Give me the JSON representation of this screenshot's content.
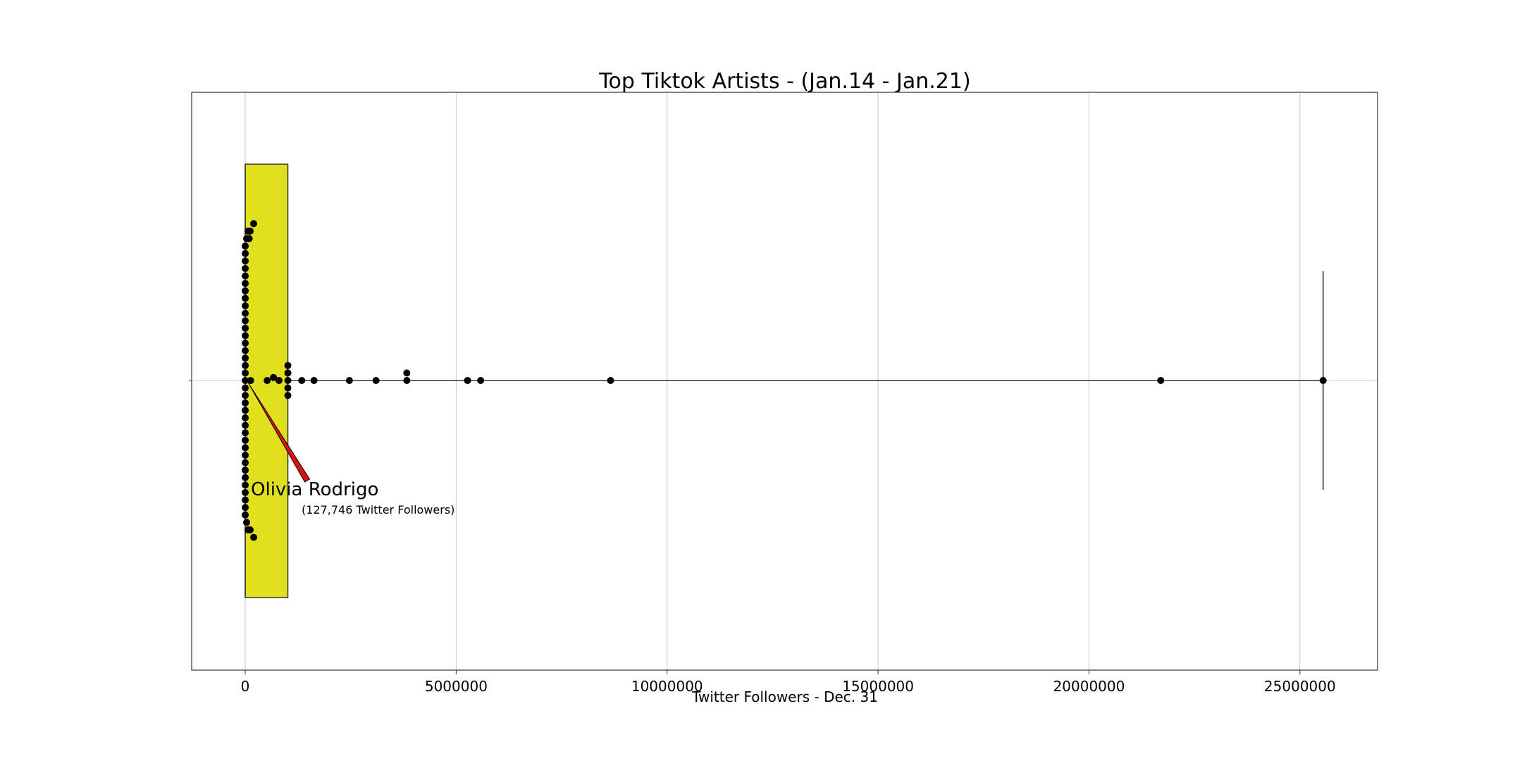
{
  "chart_data": {
    "type": "box",
    "title": "Top Tiktok Artists - (Jan.14 - Jan.21)",
    "xlabel": "Twitter Followers - Dec. 31",
    "ylabel": "",
    "xlim": [
      -1270000,
      26840000
    ],
    "xticks": [
      0,
      5000000,
      10000000,
      15000000,
      20000000,
      25000000
    ],
    "xtick_labels": [
      "0",
      "5000000",
      "10000000",
      "15000000",
      "20000000",
      "25000000"
    ],
    "grid": true,
    "colors": {
      "box_fill": "#e0e01e",
      "box_edge": "#333333",
      "points": "#000000",
      "arrow": "#dd1111",
      "grid": "#c8c8c8"
    },
    "box": {
      "q1": 0,
      "median": 0,
      "q3": 1010000,
      "whisker_low": 0,
      "whisker_high": 25550000
    },
    "points": [
      {
        "x": 0,
        "level": -20
      },
      {
        "x": 0,
        "level": -19
      },
      {
        "x": 0,
        "level": -18
      },
      {
        "x": 0,
        "level": -17
      },
      {
        "x": 0,
        "level": -16
      },
      {
        "x": 0,
        "level": -15
      },
      {
        "x": 0,
        "level": -14
      },
      {
        "x": 0,
        "level": -13
      },
      {
        "x": 0,
        "level": -12
      },
      {
        "x": 0,
        "level": -11
      },
      {
        "x": 0,
        "level": -10
      },
      {
        "x": 0,
        "level": -9
      },
      {
        "x": 0,
        "level": -8
      },
      {
        "x": 0,
        "level": -7
      },
      {
        "x": 0,
        "level": -6
      },
      {
        "x": 0,
        "level": -5
      },
      {
        "x": 0,
        "level": -4
      },
      {
        "x": 0,
        "level": -3
      },
      {
        "x": 0,
        "level": -2
      },
      {
        "x": 0,
        "level": -1
      },
      {
        "x": 0,
        "level": 0
      },
      {
        "x": 0,
        "level": 1
      },
      {
        "x": 0,
        "level": 2
      },
      {
        "x": 0,
        "level": 3
      },
      {
        "x": 0,
        "level": 4
      },
      {
        "x": 0,
        "level": 5
      },
      {
        "x": 0,
        "level": 6
      },
      {
        "x": 0,
        "level": 7
      },
      {
        "x": 0,
        "level": 8
      },
      {
        "x": 0,
        "level": 9
      },
      {
        "x": 0,
        "level": 10
      },
      {
        "x": 0,
        "level": 11
      },
      {
        "x": 0,
        "level": 12
      },
      {
        "x": 0,
        "level": 13
      },
      {
        "x": 0,
        "level": 14
      },
      {
        "x": 0,
        "level": 15
      },
      {
        "x": 0,
        "level": 16
      },
      {
        "x": 0,
        "level": 17
      },
      {
        "x": 0,
        "level": 18
      },
      {
        "x": 0,
        "level": 19
      },
      {
        "x": 0,
        "level": 20
      },
      {
        "x": 100000,
        "level": 21
      },
      {
        "x": 100000,
        "level": -21
      },
      {
        "x": 50000,
        "level": -20
      },
      {
        "x": 50000,
        "level": 20
      },
      {
        "x": 60000,
        "level": 19
      },
      {
        "x": 127746,
        "level": 0
      },
      {
        "x": 520000,
        "level": 0
      },
      {
        "x": 670000,
        "level": 0.4
      },
      {
        "x": 800000,
        "level": 0
      },
      {
        "x": 1010000,
        "level": 0
      },
      {
        "x": 1010000,
        "level": 1
      },
      {
        "x": 1010000,
        "level": -1
      },
      {
        "x": 1010000,
        "level": 2
      },
      {
        "x": 1010000,
        "level": -2
      },
      {
        "x": 1340000,
        "level": 0
      },
      {
        "x": 1630000,
        "level": 0
      },
      {
        "x": 2470000,
        "level": 0
      },
      {
        "x": 3100000,
        "level": 0
      },
      {
        "x": 3830000,
        "level": 0
      },
      {
        "x": 3830000,
        "level": 1
      },
      {
        "x": 5270000,
        "level": 0
      },
      {
        "x": 5580000,
        "level": 0
      },
      {
        "x": 8660000,
        "level": 0
      },
      {
        "x": 21700000,
        "level": 0
      },
      {
        "x": 25550000,
        "level": 0
      }
    ],
    "annotation": {
      "label": "Olivia Rodrigo",
      "sublabel": "(127,746 Twitter Followers)",
      "x": 127746
    }
  }
}
